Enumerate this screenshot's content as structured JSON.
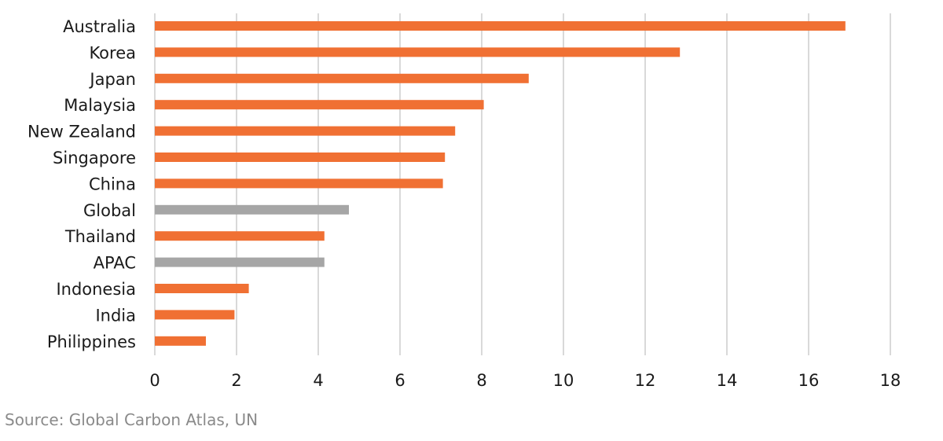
{
  "chart_data": {
    "type": "bar",
    "orientation": "horizontal",
    "categories": [
      "Australia",
      "Korea",
      "Japan",
      "Malaysia",
      "New Zealand",
      "Singapore",
      "China",
      "Global",
      "Thailand",
      "APAC",
      "Indonesia",
      "India",
      "Philippines"
    ],
    "values": [
      16.9,
      12.85,
      9.15,
      8.05,
      7.35,
      7.1,
      7.05,
      4.75,
      4.15,
      4.15,
      2.3,
      1.95,
      1.25
    ],
    "highlight": [
      "Global",
      "APAC"
    ],
    "xlim": [
      0,
      18
    ],
    "xticks": [
      0,
      2,
      4,
      6,
      8,
      10,
      12,
      14,
      16,
      18
    ],
    "grid": "vertical",
    "legend": "none",
    "title": "",
    "xlabel": "",
    "ylabel": ""
  },
  "colors": {
    "bar": "#F07033",
    "highlight_bar": "#A6A6A6",
    "gridline": "#D9D9D9"
  },
  "source": "Source: Global Carbon Atlas, UN"
}
